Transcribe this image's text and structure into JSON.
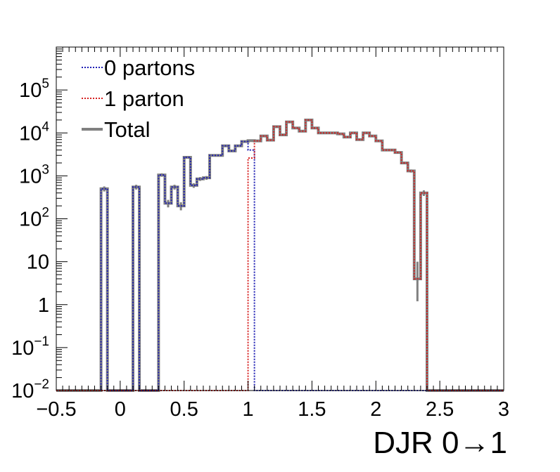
{
  "chart_data": {
    "type": "line",
    "step_histogram": true,
    "title": "",
    "xlabel": "DJR 0→1",
    "ylabel": "",
    "x_axis": {
      "range": [
        -0.5,
        3.0
      ],
      "major_ticks": [
        -0.5,
        0,
        0.5,
        1,
        1.5,
        2,
        2.5,
        3
      ],
      "tick_labels": [
        "−0.5",
        "0",
        "0.5",
        "1",
        "1.5",
        "2",
        "2.5",
        "3"
      ]
    },
    "y_axis": {
      "scale": "log",
      "range": [
        0.01,
        1000000
      ],
      "major_ticks": [
        0.01,
        0.1,
        1,
        10,
        100,
        1000,
        10000,
        100000
      ],
      "tick_labels": [
        {
          "base": "10",
          "exp": "−2"
        },
        {
          "base": "10",
          "exp": "−1"
        },
        {
          "base": "1",
          "exp": ""
        },
        {
          "base": "10",
          "exp": ""
        },
        {
          "base": "10",
          "exp": "2"
        },
        {
          "base": "10",
          "exp": "3"
        },
        {
          "base": "10",
          "exp": "4"
        },
        {
          "base": "10",
          "exp": "5"
        }
      ]
    },
    "grid": false,
    "legend_position": "top-left",
    "legend": [
      {
        "label": "0 partons",
        "color": "#1f1fb4",
        "style": "dotted"
      },
      {
        "label": "1 parton",
        "color": "#d62020",
        "style": "dotted"
      },
      {
        "label": "Total",
        "color": "#808080",
        "style": "solid"
      }
    ],
    "bin_edges": [
      -0.5,
      -0.45,
      -0.4,
      -0.35,
      -0.3,
      -0.25,
      -0.2,
      -0.15,
      -0.1,
      -0.05,
      0.0,
      0.05,
      0.1,
      0.15,
      0.2,
      0.25,
      0.3,
      0.35,
      0.4,
      0.45,
      0.5,
      0.55,
      0.6,
      0.65,
      0.7,
      0.75,
      0.8,
      0.85,
      0.9,
      0.95,
      1.0,
      1.05,
      1.1,
      1.15,
      1.2,
      1.25,
      1.3,
      1.35,
      1.4,
      1.45,
      1.5,
      1.55,
      1.6,
      1.65,
      1.7,
      1.75,
      1.8,
      1.85,
      1.9,
      1.95,
      2.0,
      2.05,
      2.1,
      2.15,
      2.2,
      2.25,
      2.3,
      2.35,
      2.4,
      2.45,
      2.5,
      2.55,
      2.6,
      2.65,
      2.7,
      2.75,
      2.8,
      2.85,
      2.9,
      2.95,
      3.0
    ],
    "series": [
      {
        "name": "0 partons",
        "color": "#1f1fb4",
        "values": [
          0.01,
          0.01,
          0.01,
          0.01,
          0.01,
          0.01,
          0.01,
          500,
          0.01,
          0.01,
          0.01,
          0.01,
          550,
          0.01,
          0.01,
          0.01,
          1050,
          230,
          550,
          200,
          2700,
          600,
          850,
          900,
          3000,
          3000,
          5000,
          3800,
          5000,
          6300,
          4000,
          0.01,
          0.01,
          0.01,
          0.01,
          0.01,
          0.01,
          0.01,
          0.01,
          0.01,
          0.01,
          0.01,
          0.01,
          0.01,
          0.01,
          0.01,
          0.01,
          0.01,
          0.01,
          0.01,
          0.01,
          0.01,
          0.01,
          0.01,
          0.01,
          0.01,
          0.01,
          0.01,
          0.01,
          0.01,
          0.01,
          0.01,
          0.01,
          0.01,
          0.01,
          0.01,
          0.01,
          0.01,
          0.01,
          0.01
        ]
      },
      {
        "name": "1 parton",
        "color": "#d62020",
        "values": [
          0.01,
          0.01,
          0.01,
          0.01,
          0.01,
          0.01,
          0.01,
          0.01,
          0.01,
          0.01,
          0.01,
          0.01,
          0.01,
          0.01,
          0.01,
          0.01,
          0.01,
          0.01,
          0.01,
          0.01,
          0.01,
          0.01,
          0.01,
          0.01,
          0.01,
          0.01,
          0.01,
          0.01,
          0.01,
          0.01,
          2600,
          6500,
          8500,
          6800,
          14000,
          9000,
          18000,
          13000,
          11000,
          20000,
          13000,
          10000,
          10000,
          10000,
          9500,
          8000,
          10000,
          7000,
          10000,
          8500,
          6500,
          4000,
          4000,
          3500,
          2000,
          1300,
          4,
          400,
          0.01,
          0.01,
          0.01,
          0.01,
          0.01,
          0.01,
          0.01,
          0.01,
          0.01,
          0.01,
          0.01,
          0.01
        ]
      },
      {
        "name": "Total",
        "color": "#808080",
        "values": [
          0.01,
          0.01,
          0.01,
          0.01,
          0.01,
          0.01,
          0.01,
          500,
          0.01,
          0.01,
          0.01,
          0.01,
          550,
          0.01,
          0.01,
          0.01,
          1050,
          230,
          550,
          200,
          2700,
          600,
          850,
          900,
          3000,
          3000,
          5000,
          3800,
          5000,
          6300,
          6600,
          6500,
          8500,
          6800,
          14000,
          9000,
          18000,
          13000,
          11000,
          20000,
          13000,
          10000,
          10000,
          10000,
          9500,
          8000,
          10000,
          7000,
          10000,
          8500,
          6500,
          4000,
          4000,
          3500,
          2000,
          1300,
          4,
          400,
          0.01,
          0.01,
          0.01,
          0.01,
          0.01,
          0.01,
          0.01,
          0.01,
          0.01,
          0.01,
          0.01,
          0.01
        ]
      }
    ]
  }
}
